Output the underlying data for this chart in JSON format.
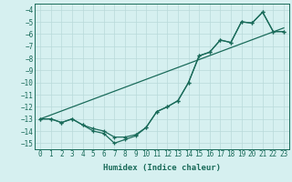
{
  "xlabel": "Humidex (Indice chaleur)",
  "ylabel": "",
  "bg_color": "#d6f0f0",
  "grid_color": "#b8dada",
  "line_color": "#1a6b5a",
  "xlim": [
    -0.5,
    23.5
  ],
  "ylim": [
    -15.5,
    -3.5
  ],
  "xticks": [
    0,
    1,
    2,
    3,
    4,
    5,
    6,
    7,
    8,
    9,
    10,
    11,
    12,
    13,
    14,
    15,
    16,
    17,
    18,
    19,
    20,
    21,
    22,
    23
  ],
  "yticks": [
    -4,
    -5,
    -6,
    -7,
    -8,
    -9,
    -10,
    -11,
    -12,
    -13,
    -14,
    -15
  ],
  "line1_x": [
    0,
    1,
    2,
    3,
    4,
    5,
    6,
    7,
    8,
    9,
    10,
    11,
    12,
    13,
    14,
    15,
    16,
    17,
    18,
    19,
    20,
    21,
    22,
    23
  ],
  "line1_y": [
    -13,
    -13,
    -13.3,
    -13,
    -13.5,
    -14,
    -14.2,
    -15,
    -14.7,
    -14.4,
    -13.7,
    -12.4,
    -12,
    -11.5,
    -10,
    -7.8,
    -7.5,
    -6.5,
    -6.7,
    -5,
    -5.1,
    -4.2,
    -5.8,
    -5.8
  ],
  "line2_x": [
    0,
    1,
    2,
    3,
    4,
    5,
    6,
    7,
    8,
    9,
    10,
    11,
    12,
    13,
    14,
    15,
    16,
    17,
    18,
    19,
    20,
    21,
    22,
    23
  ],
  "line2_y": [
    -13,
    -13,
    -13.3,
    -13,
    -13.5,
    -13.8,
    -14,
    -14.5,
    -14.5,
    -14.3,
    -13.7,
    -12.4,
    -12,
    -11.5,
    -10,
    -7.8,
    -7.5,
    -6.5,
    -6.7,
    -5,
    -5.1,
    -4.2,
    -5.8,
    -5.8
  ],
  "line3_x": [
    0,
    23
  ],
  "line3_y": [
    -13.0,
    -5.5
  ]
}
